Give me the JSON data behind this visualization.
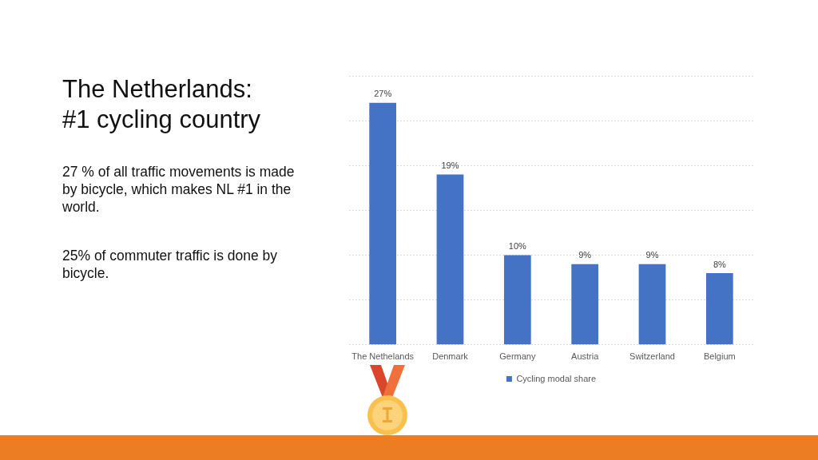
{
  "chart_data": {
    "type": "bar",
    "title": "The Netherlands: #1 cycling country",
    "annotations": [
      "27 % of all traffic movements is made by bicycle, which makes NL #1 in the world.",
      "25% of commuter traffic is done by bicycle."
    ],
    "categories": [
      "The Nethelands",
      "Denmark",
      "Germany",
      "Austria",
      "Switzerland",
      "Belgium"
    ],
    "series": [
      {
        "name": "Cycling modal share",
        "color": "#4472c4",
        "values": [
          27,
          19,
          10,
          9,
          9,
          8
        ],
        "value_labels": [
          "27%",
          "19%",
          "10%",
          "9%",
          "9%",
          "8%"
        ]
      }
    ],
    "ylim": [
      0,
      30
    ],
    "yticks": [
      {
        "value": 0,
        "label": null
      },
      {
        "value": 5,
        "label": null
      },
      {
        "value": 10,
        "label": null
      },
      {
        "value": 15,
        "label": null
      },
      {
        "value": 20,
        "label": null
      },
      {
        "value": 25,
        "label": null
      },
      {
        "value": 30,
        "label": null
      }
    ],
    "grid": "y",
    "legend": "bottom",
    "tick_labels": "x"
  }
}
